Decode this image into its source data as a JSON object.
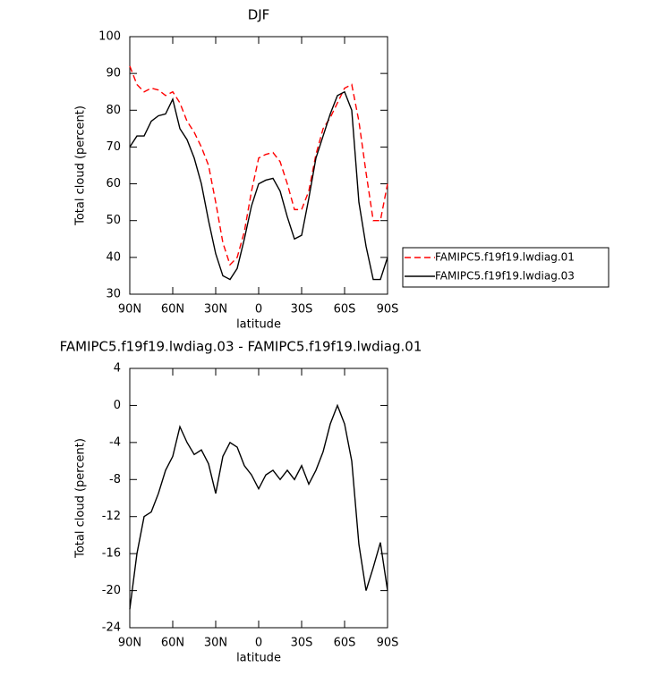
{
  "chart_data": [
    {
      "type": "line",
      "title": "DJF",
      "xlabel": "latitude",
      "ylabel": "Total cloud (percent)",
      "x": [
        90,
        85,
        80,
        75,
        70,
        65,
        60,
        55,
        50,
        45,
        40,
        35,
        30,
        25,
        20,
        15,
        10,
        5,
        0,
        -5,
        -10,
        -15,
        -20,
        -25,
        -30,
        -35,
        -40,
        -45,
        -50,
        -55,
        -60,
        -65,
        -70,
        -75,
        -80,
        -85,
        -90
      ],
      "series": [
        {
          "name": "FAMIPC5.f19f19.lwdiag.01",
          "color": "#ff0000",
          "dash": true,
          "values": [
            92,
            87,
            85,
            86,
            85.5,
            84,
            85,
            82,
            77,
            74,
            70,
            65,
            55,
            44,
            38,
            40,
            47,
            58,
            67,
            68,
            68.5,
            66,
            60,
            53,
            53,
            58,
            68,
            75,
            78,
            82,
            86,
            87,
            77,
            63,
            50,
            50,
            60
          ]
        },
        {
          "name": "FAMIPC5.f19f19.lwdiag.03",
          "color": "#000000",
          "dash": false,
          "values": [
            70,
            73,
            73,
            77,
            78.5,
            79,
            83,
            75,
            72,
            67,
            60,
            50,
            41,
            35,
            34,
            37,
            45,
            54,
            60,
            61,
            61.5,
            58,
            51,
            45,
            46,
            56,
            67,
            73,
            79,
            84,
            85,
            80,
            55,
            43,
            34,
            34,
            40
          ]
        }
      ],
      "xlim": [
        90,
        -90
      ],
      "xticks": [
        {
          "value": 90,
          "label": "90N"
        },
        {
          "value": 60,
          "label": "60N"
        },
        {
          "value": 30,
          "label": "30N"
        },
        0,
        {
          "value": -30,
          "label": "30S"
        },
        {
          "value": -60,
          "label": "60S"
        },
        {
          "value": -90,
          "label": "90S"
        }
      ],
      "ylim": [
        30,
        100
      ],
      "yticks": [
        30,
        40,
        50,
        60,
        70,
        80,
        90,
        100
      ],
      "legend_position": "right"
    },
    {
      "type": "line",
      "title": "FAMIPC5.f19f19.lwdiag.03 - FAMIPC5.f19f19.lwdiag.01",
      "xlabel": "latitude",
      "ylabel": "Total cloud (percent)",
      "x": [
        90,
        85,
        80,
        75,
        70,
        65,
        60,
        55,
        50,
        45,
        40,
        35,
        30,
        25,
        20,
        15,
        10,
        5,
        0,
        -5,
        -10,
        -15,
        -20,
        -25,
        -30,
        -35,
        -40,
        -45,
        -50,
        -55,
        -60,
        -65,
        -70,
        -75,
        -80,
        -85,
        -90
      ],
      "values": [
        -22,
        -16,
        -12,
        -11.5,
        -9.5,
        -7,
        -5.5,
        -2.3,
        -4,
        -5.3,
        -4.8,
        -6.3,
        -9.5,
        -5.5,
        -4,
        -4.5,
        -6.5,
        -7.5,
        -9,
        -7.5,
        -7,
        -8,
        -7,
        -8,
        -6.5,
        -8.5,
        -7,
        -5,
        -2,
        0,
        -2,
        -6,
        -15,
        -20,
        -17.5,
        -14.8,
        -20
      ],
      "color": "#000000",
      "xlim": [
        90,
        -90
      ],
      "xticks": [
        {
          "value": 90,
          "label": "90N"
        },
        {
          "value": 60,
          "label": "60N"
        },
        {
          "value": 30,
          "label": "30N"
        },
        0,
        {
          "value": -30,
          "label": "30S"
        },
        {
          "value": -60,
          "label": "60S"
        },
        {
          "value": -90,
          "label": "90S"
        }
      ],
      "ylim": [
        -24,
        4
      ],
      "yticks": [
        -24,
        -20,
        -16,
        -12,
        -8,
        -4,
        0,
        4
      ]
    }
  ]
}
